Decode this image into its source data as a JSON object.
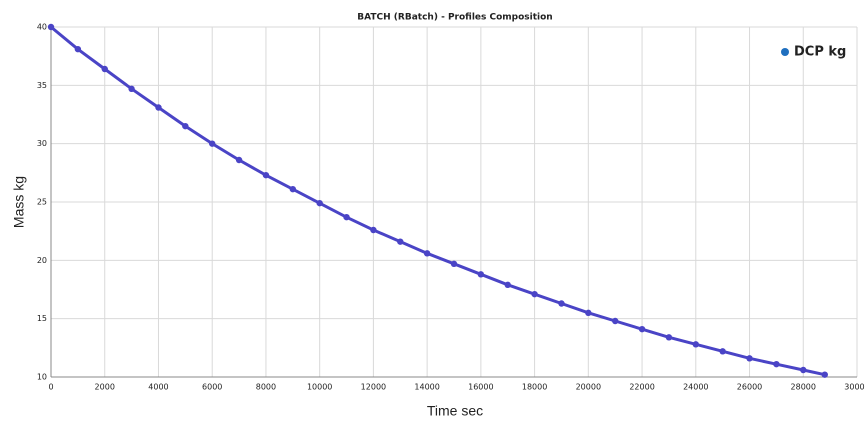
{
  "chart_data": {
    "type": "line",
    "title": "BATCH (RBatch) - Profiles Composition",
    "x_label": "Time sec",
    "y_label": "Mass kg",
    "x": [
      0,
      1000,
      2000,
      3000,
      4000,
      5000,
      6000,
      7000,
      8000,
      9000,
      10000,
      11000,
      12000,
      13000,
      14000,
      15000,
      16000,
      17000,
      18000,
      19000,
      20000,
      21000,
      22000,
      23000,
      24000,
      25000,
      26000,
      27000,
      28000,
      28800
    ],
    "series": [
      {
        "name": "DCP kg",
        "color": "#4a44c6",
        "legend_color": "#1f6fbf",
        "values": [
          40,
          38.1,
          36.4,
          34.7,
          33.1,
          31.5,
          30.0,
          28.6,
          27.3,
          26.1,
          24.9,
          23.7,
          22.6,
          21.6,
          20.6,
          19.7,
          18.8,
          17.9,
          17.1,
          16.3,
          15.5,
          14.8,
          14.1,
          13.4,
          12.8,
          12.2,
          11.6,
          11.1,
          10.6,
          10.2
        ]
      }
    ],
    "xlim": [
      0,
      30000
    ],
    "xticks": [
      0,
      2000,
      4000,
      6000,
      8000,
      10000,
      12000,
      14000,
      16000,
      18000,
      20000,
      22000,
      24000,
      26000,
      28000,
      30000
    ],
    "ylim": [
      10,
      40
    ],
    "yticks": [
      10,
      15,
      20,
      25,
      30,
      35,
      40
    ],
    "grid": true,
    "legend": "upper right"
  }
}
